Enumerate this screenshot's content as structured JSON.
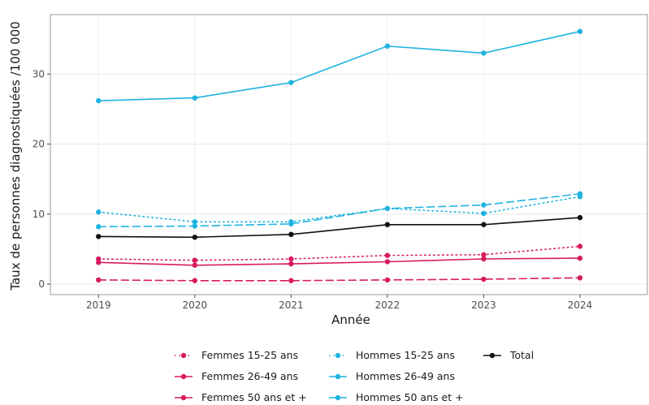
{
  "chart_data": {
    "type": "line",
    "title": "",
    "xlabel": "Année",
    "ylabel": "Taux de personnes diagnostiquées /100 000",
    "x": [
      2019,
      2020,
      2021,
      2022,
      2023,
      2024
    ],
    "xlim": [
      2018.5,
      2024.7
    ],
    "ylim": [
      -1.5,
      38.5
    ],
    "yticks": [
      0,
      10,
      20,
      30
    ],
    "grid": true,
    "legend_position": "bottom",
    "series": [
      {
        "name": "Femmes 15-25 ans",
        "color": "#d81b60",
        "dash": "dotted",
        "values": [
          3.6,
          3.4,
          3.6,
          4.1,
          4.2,
          5.4
        ]
      },
      {
        "name": "Femmes 26-49 ans",
        "color": "#d81b60",
        "dash": "solid",
        "values": [
          3.1,
          2.7,
          2.9,
          3.2,
          3.6,
          3.7
        ]
      },
      {
        "name": "Femmes 50 ans et +",
        "color": "#d81b60",
        "dash": "dashed",
        "values": [
          0.6,
          0.5,
          0.5,
          0.6,
          0.7,
          0.9
        ]
      },
      {
        "name": "Hommes 15-25 ans",
        "color": "#1fb4e0",
        "dash": "dotted",
        "values": [
          10.3,
          8.9,
          8.9,
          10.8,
          10.1,
          12.5
        ]
      },
      {
        "name": "Hommes 26-49 ans",
        "color": "#1fb4e0",
        "dash": "solid",
        "values": [
          26.2,
          26.6,
          28.8,
          34.0,
          33.0,
          36.1
        ]
      },
      {
        "name": "Hommes 50 ans et +",
        "color": "#1fb4e0",
        "dash": "dashed",
        "values": [
          8.2,
          8.3,
          8.6,
          10.8,
          11.3,
          12.9
        ]
      },
      {
        "name": "Total",
        "color": "#111111",
        "dash": "solid",
        "values": [
          6.8,
          6.7,
          7.1,
          8.5,
          8.5,
          9.5
        ]
      }
    ]
  }
}
